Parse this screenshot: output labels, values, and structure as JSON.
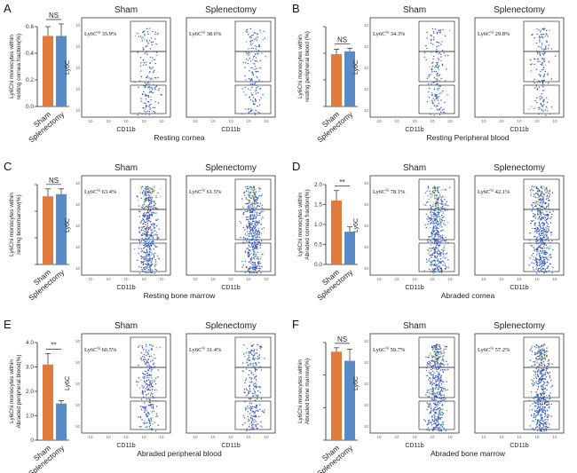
{
  "figure": {
    "sham_label": "Sham",
    "splenectomy_label": "Splenectomy",
    "xaxis_label": "CD11b",
    "yaxis_label": "Ly6C",
    "gate_prefix": "Ly6C",
    "gate_superscript": "hi",
    "bar_colors": {
      "sham": "#e07b3c",
      "splenectomy": "#5b8bc6"
    }
  },
  "chart_data": [
    {
      "panel": "A",
      "type": "bar",
      "ylabel": "Ly6Chi monocytes within resting cornea fraction(%)",
      "ylim": [
        0,
        0.6
      ],
      "yticks": [
        "0.0",
        "0.2",
        "0.4",
        "0.6"
      ],
      "categories": [
        "Sham",
        "Splenectomy"
      ],
      "values": [
        0.53,
        0.53
      ],
      "errors": [
        0.07,
        0.09
      ],
      "significance": "NS",
      "flow_caption": "Resting cornea",
      "gate_sham": "35.9%",
      "gate_splenectomy": "38.6%",
      "flow_style": "sparse"
    },
    {
      "panel": "B",
      "type": "bar",
      "ylabel": "Ly6Chi monocytes within resting peripheral blood (%)",
      "ylim": [
        0,
        2.0
      ],
      "yticks": [],
      "categories": [
        "Sham",
        "Splenectomy"
      ],
      "values": [
        1.31,
        1.38
      ],
      "errors": [
        0.12,
        0.08
      ],
      "significance": "NS",
      "flow_caption": "Resting Peripheral blood",
      "gate_sham": "34.3%",
      "gate_splenectomy": "29.8%",
      "flow_style": "sparse"
    },
    {
      "panel": "C",
      "type": "bar",
      "ylabel": "Ly6Chi monocytes within resting bonemarrow(%)",
      "ylim": [
        0,
        1.5
      ],
      "yticks": [],
      "categories": [
        "Sham",
        "Splenectomy"
      ],
      "values": [
        1.28,
        1.32
      ],
      "errors": [
        0.14,
        0.1
      ],
      "significance": "NS",
      "flow_caption": "Resting bone marrow",
      "gate_sham": "63.4%",
      "gate_splenectomy": "61.5%",
      "flow_style": "dense"
    },
    {
      "panel": "D",
      "type": "bar",
      "ylabel": "Ly6Chi monocytes within Abraded cornea fraction(%)",
      "ylim": [
        0,
        2.0
      ],
      "yticks": [
        "0.0",
        "0.5",
        "1.0",
        "1.5",
        "2.0"
      ],
      "categories": [
        "Sham",
        "Splenectomy"
      ],
      "values": [
        1.6,
        0.82
      ],
      "errors": [
        0.25,
        0.12
      ],
      "significance": "**",
      "flow_caption": "Abraded cornea",
      "gate_sham": "78.1%",
      "gate_splenectomy": "42.1%",
      "flow_style": "dense"
    },
    {
      "panel": "E",
      "type": "bar",
      "ylabel": "Ly6Chi monocytes within Abraded peripheral blood(%)",
      "ylim": [
        0,
        4
      ],
      "yticks": [
        "0",
        "1.0",
        "2.0",
        "3.0",
        "4.0"
      ],
      "categories": [
        "Sham",
        "Splenectomy"
      ],
      "values": [
        3.1,
        1.5
      ],
      "errors": [
        0.45,
        0.12
      ],
      "significance": "**",
      "flow_caption": "Abraded peripheral blood",
      "gate_sham": "60.5%",
      "gate_splenectomy": "31.4%",
      "flow_style": "medium"
    },
    {
      "panel": "F",
      "type": "bar",
      "ylabel": "Ly6Chi monocytes within Abraded bone marrow(%)",
      "ylim": [
        0,
        1.5
      ],
      "yticks": [],
      "categories": [
        "Sham",
        "Splenectomy"
      ],
      "values": [
        1.36,
        1.22
      ],
      "errors": [
        0.06,
        0.18
      ],
      "significance": "NS",
      "flow_caption": "Abraded bone marrow",
      "gate_sham": "59.7%",
      "gate_splenectomy": "57.2%",
      "flow_style": "dense"
    }
  ]
}
